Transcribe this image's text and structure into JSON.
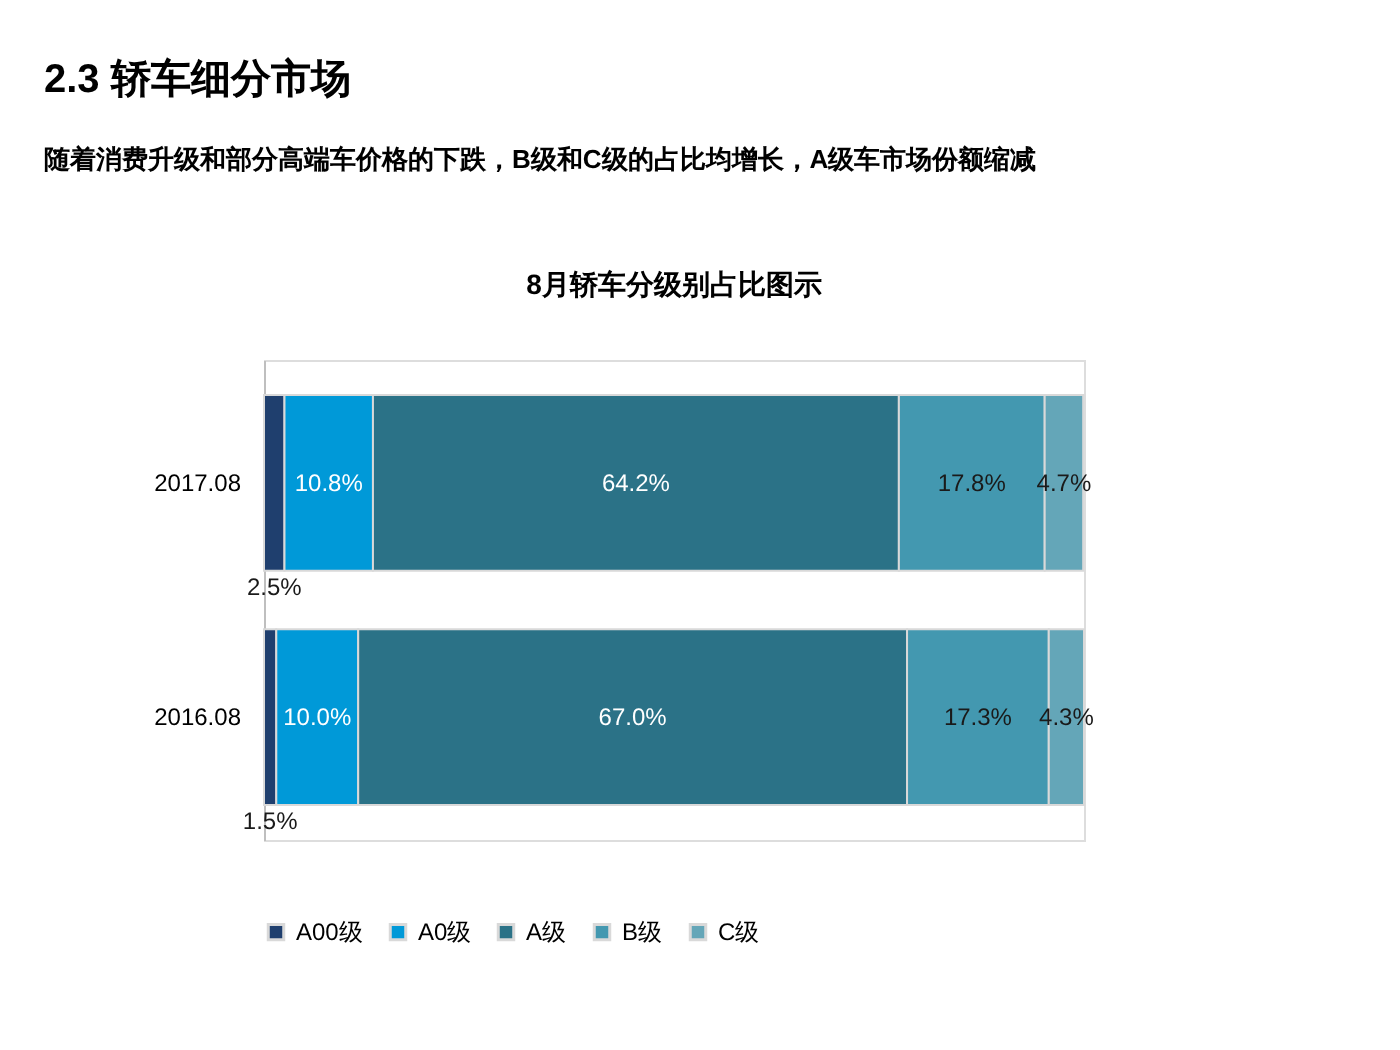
{
  "chart_data": {
    "type": "bar",
    "orientation": "horizontal",
    "stacked": true,
    "title": "8月轿车分级别占比图示",
    "annotations": [
      "2.3 轿车细分市场",
      "随着消费升级和部分高端车价格的下跌，B级和C级的占比均增长，A级车市场份额缩减"
    ],
    "categories": [
      "2017.08",
      "2016.08"
    ],
    "series": [
      {
        "name": "A00级",
        "color": "#1f3f6e",
        "values": [
          2.5,
          1.5
        ],
        "value_labels": [
          "2.5%",
          "1.5%"
        ]
      },
      {
        "name": "A0级",
        "color": "#0099d8",
        "values": [
          10.8,
          10.0
        ],
        "value_labels": [
          "10.8%",
          "10.0%"
        ]
      },
      {
        "name": "A级",
        "color": "#2b7287",
        "values": [
          64.2,
          67.0
        ],
        "value_labels": [
          "64.2%",
          "67.0%"
        ]
      },
      {
        "name": "B级",
        "color": "#4398b0",
        "values": [
          17.8,
          17.3
        ],
        "value_labels": [
          "17.8%",
          "17.3%"
        ]
      },
      {
        "name": "C级",
        "color": "#64a6b8",
        "values": [
          4.7,
          4.3
        ],
        "value_labels": [
          "4.7%",
          "4.3%"
        ]
      }
    ],
    "legend": "bottom"
  }
}
